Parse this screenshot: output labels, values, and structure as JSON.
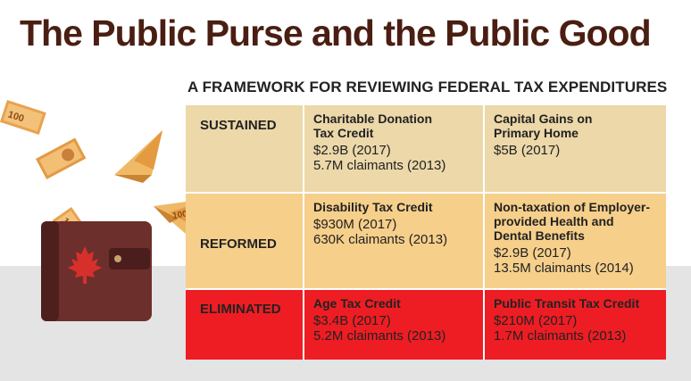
{
  "title": "The Public Purse and the Public Good",
  "subtitle": "A FRAMEWORK FOR REVIEWING FEDERAL TAX EXPENDITURES",
  "colors": {
    "sustained": "#ecd8a9",
    "reformed": "#f6cf8b",
    "eliminated": "#ee1d23",
    "title": "#4a1e12"
  },
  "rows": [
    {
      "label": "SUSTAINED",
      "items": [
        {
          "name": "Charitable Donation\nTax Credit",
          "cost": "$2.9B (2017)",
          "claimants": "5.7M claimants (2013)"
        },
        {
          "name": "Capital Gains on\nPrimary Home",
          "cost": "$5B (2017)",
          "claimants": ""
        }
      ]
    },
    {
      "label": "REFORMED",
      "items": [
        {
          "name": "Disability Tax Credit",
          "cost": "$930M (2017)",
          "claimants": "630K claimants (2013)"
        },
        {
          "name": "Non-taxation of Employer-\nprovided Health and\nDental Benefits",
          "cost": "$2.9B (2017)",
          "claimants": "13.5M claimants (2014)"
        }
      ]
    },
    {
      "label": "ELIMINATED",
      "items": [
        {
          "name": "Age Tax Credit",
          "cost": "$3.4B (2017)",
          "claimants": "5.2M claimants (2013)"
        },
        {
          "name": "Public Transit Tax Credit",
          "cost": "$210M (2017)",
          "claimants": "1.7M claimants (2013)"
        }
      ]
    }
  ],
  "illustration": {
    "icon": "wallet-with-flying-banknotes-icon",
    "banknote_label": "100"
  }
}
